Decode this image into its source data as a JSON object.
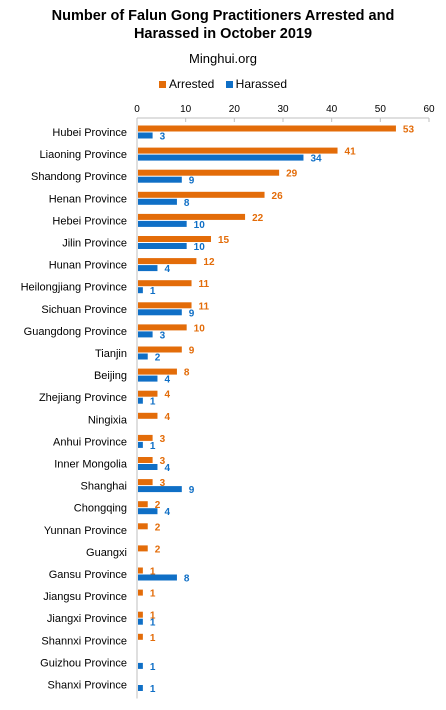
{
  "header": {
    "title_line1": "Number of Falun Gong Practitioners Arrested and",
    "title_line2": "Harassed in October 2019",
    "source": "Minghui.org"
  },
  "legend": {
    "items": [
      {
        "label": "Arrested",
        "color": "#e36c09"
      },
      {
        "label": "Harassed",
        "color": "#0f6fc6"
      }
    ]
  },
  "chart_data": {
    "type": "bar",
    "orientation": "horizontal",
    "title": "Number of Falun Gong Practitioners Arrested and Harassed in October 2019",
    "subtitle": "Minghui.org",
    "xlim": [
      0,
      60
    ],
    "xticks": [
      0,
      10,
      20,
      30,
      40,
      50,
      60
    ],
    "xaxis_position": "top",
    "grid": false,
    "legend_position": "top",
    "categories": [
      "Hubei Province",
      "Liaoning Province",
      "Shandong Province",
      "Henan Province",
      "Hebei Province",
      "Jilin Province",
      "Hunan Province",
      "Heilongjiang Province",
      "Sichuan Province",
      "Guangdong Province",
      "Tianjin",
      "Beijing",
      "Zhejiang Province",
      "Ningixia",
      "Anhui Province",
      "Inner Mongolia",
      "Shanghai",
      "Chongqing",
      "Yunnan Province",
      "Guangxi",
      "Gansu Province",
      "Jiangsu Province",
      "Jiangxi Province",
      "Shannxi Province",
      "Guizhou Province",
      "Shanxi Province"
    ],
    "series": [
      {
        "name": "Arrested",
        "color": "#e36c09",
        "values": [
          53,
          41,
          29,
          26,
          22,
          15,
          12,
          11,
          11,
          10,
          9,
          8,
          4,
          4,
          3,
          3,
          3,
          2,
          2,
          2,
          1,
          1,
          1,
          1,
          null,
          null
        ]
      },
      {
        "name": "Harassed",
        "color": "#0f6fc6",
        "values": [
          3,
          34,
          9,
          8,
          10,
          10,
          4,
          1,
          9,
          3,
          2,
          4,
          1,
          null,
          1,
          4,
          9,
          4,
          null,
          null,
          8,
          null,
          1,
          null,
          1,
          1
        ]
      }
    ]
  }
}
